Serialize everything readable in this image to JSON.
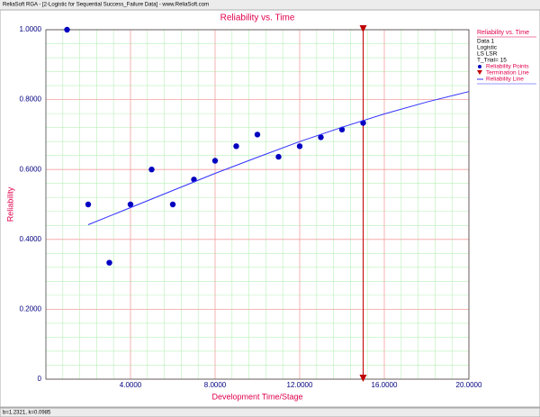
{
  "window_title": "ReliaSoft RGA - [2-Logistic for Sequential Success_Failure Data] - www.ReliaSoft.com",
  "status": "b=1.2321, k=0.0985",
  "chart_data": {
    "type": "scatter",
    "title": "Reliability vs. Time",
    "xlabel": "Development Time/Stage",
    "ylabel": "Reliability",
    "legend": {
      "title": "Reliability vs. Time",
      "info": [
        "Data 1",
        "Logistic",
        "LS LSR",
        "T_Trial= 15"
      ]
    },
    "series": [
      {
        "name": "Reliability Points",
        "type": "scatter",
        "color": "#0000c0",
        "x": [
          1,
          2,
          3,
          4,
          5,
          6,
          7,
          8,
          9,
          10,
          11,
          12,
          13,
          14,
          15
        ],
        "values": [
          1.0,
          0.5,
          0.3333,
          0.5,
          0.6,
          0.5,
          0.5714,
          0.625,
          0.6667,
          0.7,
          0.6364,
          0.6667,
          0.6923,
          0.7143,
          0.7333
        ]
      },
      {
        "name": "Reliability Line",
        "type": "line",
        "color": "#3030ff",
        "x": [
          2,
          4,
          6,
          8,
          10,
          12,
          14,
          16,
          18,
          20
        ],
        "values": [
          0.442,
          0.491,
          0.54,
          0.589,
          0.635,
          0.68,
          0.721,
          0.759,
          0.793,
          0.823
        ]
      }
    ],
    "termination": {
      "name": "Termination Line",
      "x": 15,
      "color": "#c00000"
    },
    "xlim": [
      0,
      20
    ],
    "ylim": [
      0,
      1
    ],
    "xticks": [
      {
        "value": 4,
        "label": "4.0000"
      },
      {
        "value": 8,
        "label": "8.0000"
      },
      {
        "value": 12,
        "label": "12.0000"
      },
      {
        "value": 16,
        "label": "16.0000"
      },
      {
        "value": 20,
        "label": "20.0000"
      }
    ],
    "yticks": [
      0,
      {
        "value": 0.2,
        "label": "0.2000"
      },
      {
        "value": 0.4,
        "label": "0.4000"
      },
      {
        "value": 0.6,
        "label": "0.6000"
      },
      {
        "value": 0.8,
        "label": "0.8000"
      },
      {
        "value": 1,
        "label": "1.0000"
      }
    ],
    "grid": true,
    "grid_color": "#f4a0a0",
    "minor_grid_color": "#b8f0b8",
    "minor_divisions": 5
  }
}
